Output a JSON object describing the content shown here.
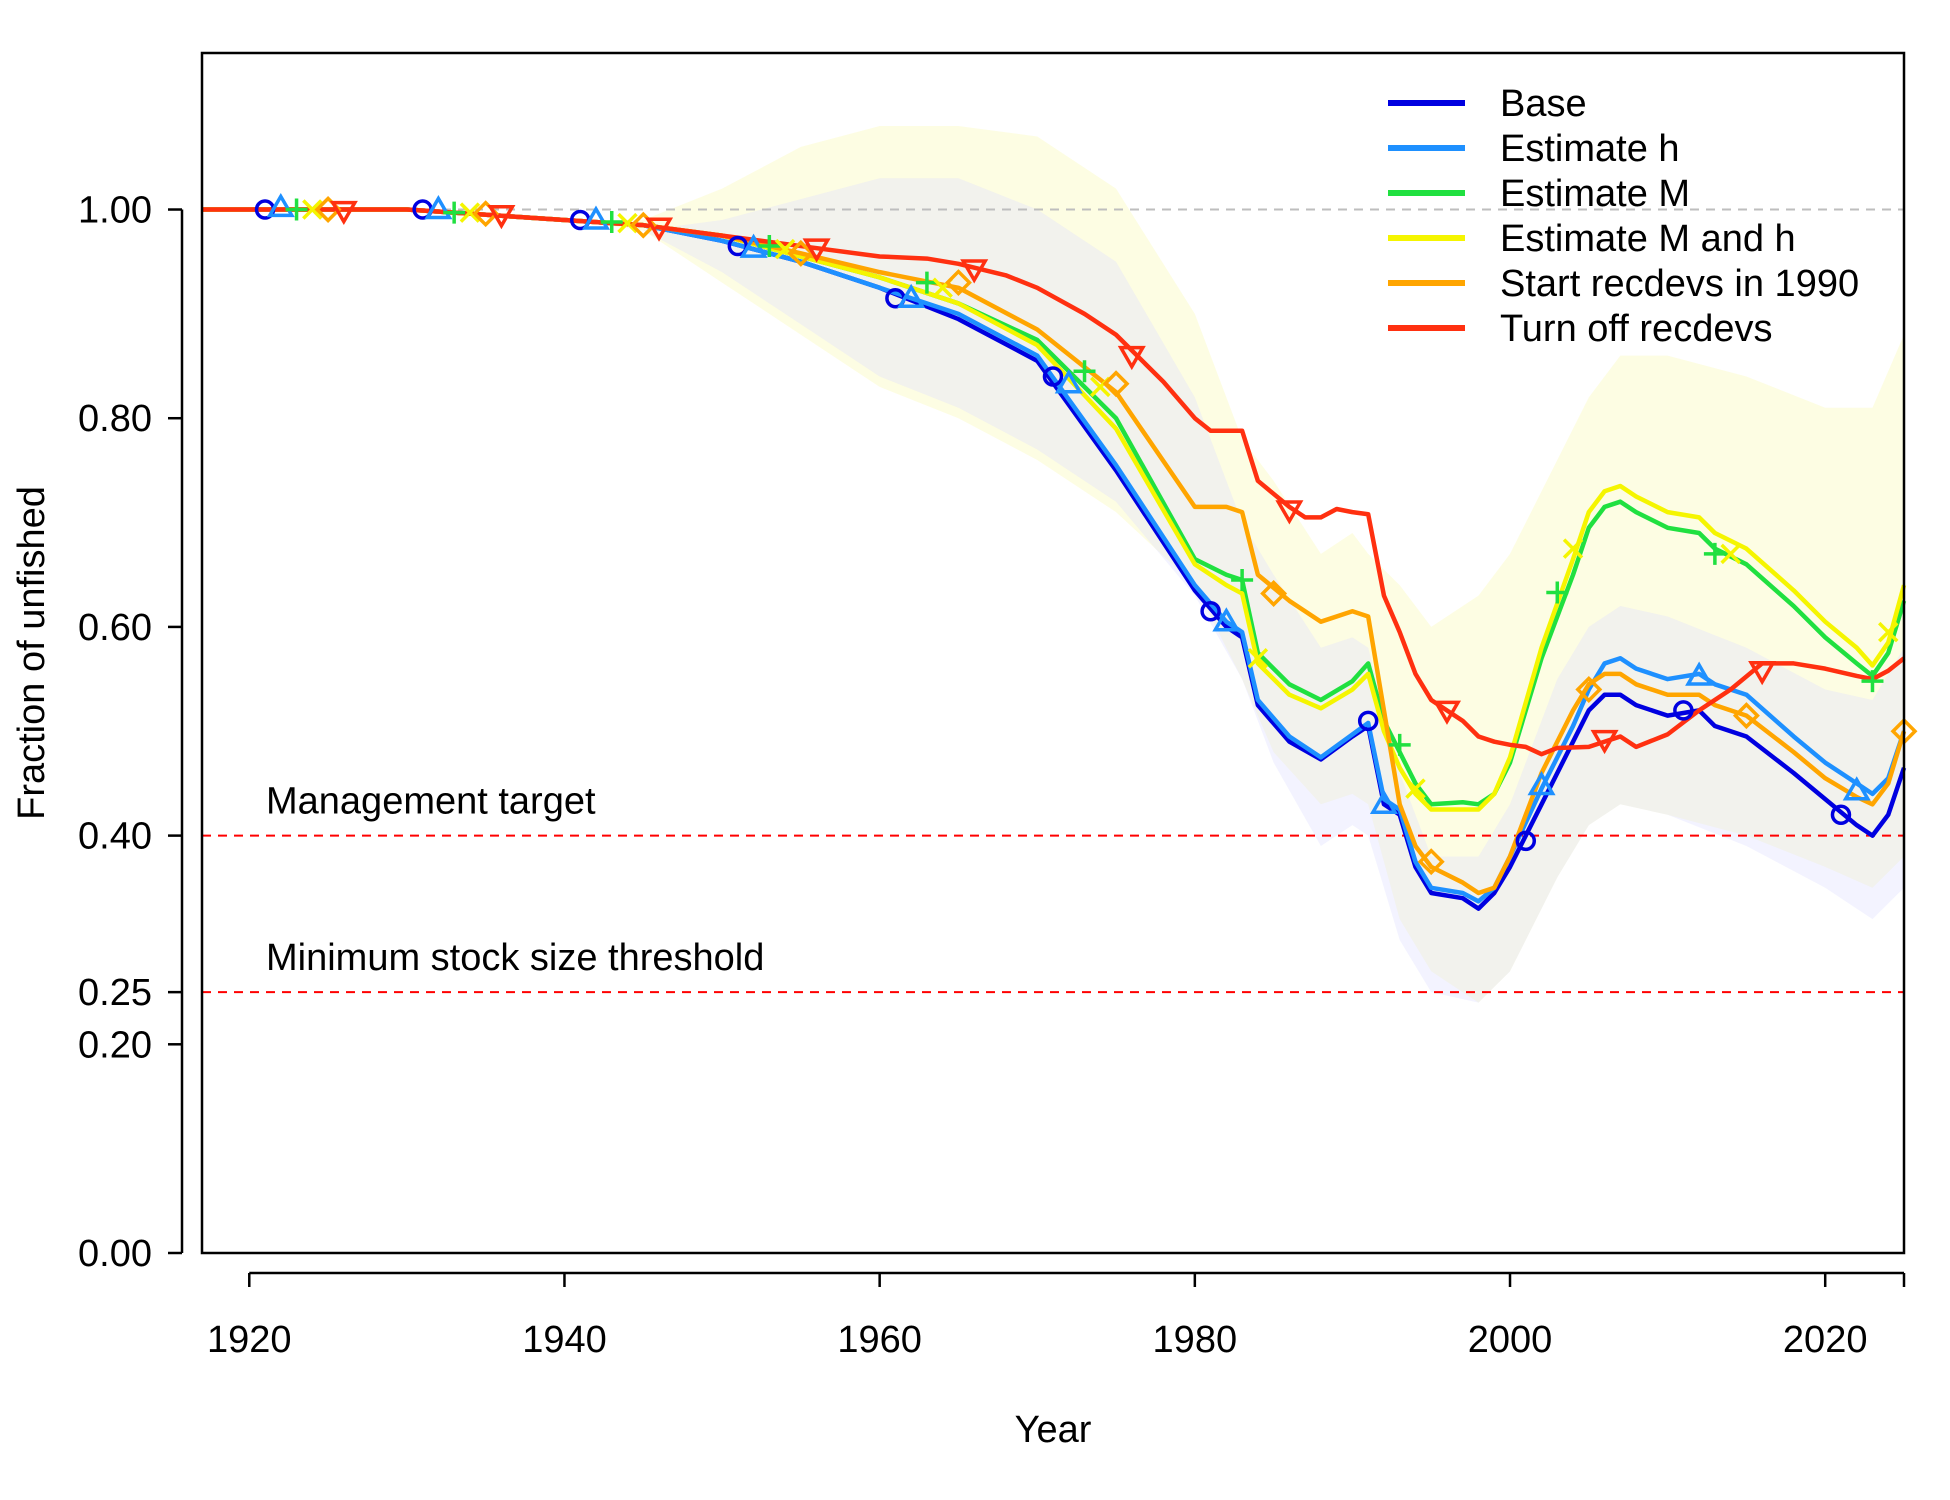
{
  "chart_data": {
    "type": "line",
    "xlabel": "Year",
    "ylabel": "Fraction of unfished",
    "xlim": [
      1917,
      2025
    ],
    "ylim": [
      0,
      1.15
    ],
    "x_ticks": [
      1920,
      1940,
      1960,
      1980,
      2000,
      2020
    ],
    "y_ticks": [
      0.0,
      0.2,
      0.25,
      0.4,
      0.6,
      0.8,
      1.0
    ],
    "y_tick_labels": [
      "0.00",
      "0.20",
      "0.25",
      "0.40",
      "0.60",
      "0.80",
      "1.00"
    ],
    "reference_lines": [
      {
        "y": 1.0,
        "label": "",
        "color": "#bebebe"
      },
      {
        "y": 0.4,
        "label": "Management target",
        "color": "#ff0000"
      },
      {
        "y": 0.25,
        "label": "Minimum stock size threshold",
        "color": "#ff0000"
      }
    ],
    "legend_position": "top-right",
    "bands": [
      {
        "color": "#f9f9b0",
        "opacity": 0.35,
        "x": [
          1920,
          1930,
          1940,
          1945,
          1950,
          1955,
          1960,
          1965,
          1970,
          1975,
          1980,
          1983,
          1985,
          1988,
          1990,
          1991,
          1993,
          1995,
          1998,
          2000,
          2003,
          2005,
          2007,
          2010,
          2015,
          2020,
          2023,
          2025
        ],
        "upper": [
          1.0,
          1.0,
          0.99,
          0.99,
          1.02,
          1.06,
          1.08,
          1.08,
          1.07,
          1.02,
          0.9,
          0.78,
          0.74,
          0.67,
          0.69,
          0.67,
          0.64,
          0.6,
          0.63,
          0.67,
          0.76,
          0.82,
          0.86,
          0.86,
          0.84,
          0.81,
          0.81,
          0.88
        ],
        "lower": [
          1.0,
          1.0,
          0.99,
          0.98,
          0.93,
          0.88,
          0.83,
          0.8,
          0.76,
          0.71,
          0.64,
          0.55,
          0.48,
          0.43,
          0.44,
          0.43,
          0.32,
          0.27,
          0.24,
          0.27,
          0.36,
          0.41,
          0.43,
          0.42,
          0.4,
          0.37,
          0.35,
          0.38
        ]
      },
      {
        "color": "#dcdcff",
        "opacity": 0.35,
        "x": [
          1920,
          1930,
          1940,
          1945,
          1950,
          1955,
          1960,
          1965,
          1970,
          1975,
          1980,
          1983,
          1985,
          1988,
          1990,
          1991,
          1993,
          1995,
          1998,
          2000,
          2003,
          2005,
          2007,
          2010,
          2015,
          2020,
          2023,
          2025
        ],
        "upper": [
          1.0,
          1.0,
          0.99,
          0.98,
          0.99,
          1.01,
          1.03,
          1.03,
          1.0,
          0.95,
          0.82,
          0.7,
          0.65,
          0.58,
          0.59,
          0.58,
          0.46,
          0.38,
          0.38,
          0.43,
          0.55,
          0.6,
          0.62,
          0.61,
          0.58,
          0.54,
          0.53,
          0.58
        ],
        "lower": [
          1.0,
          1.0,
          0.99,
          0.98,
          0.94,
          0.89,
          0.84,
          0.81,
          0.77,
          0.72,
          0.63,
          0.55,
          0.47,
          0.39,
          0.41,
          0.4,
          0.3,
          0.25,
          0.24,
          0.27,
          0.36,
          0.41,
          0.43,
          0.42,
          0.39,
          0.35,
          0.32,
          0.35
        ]
      }
    ],
    "series": [
      {
        "name": "Base",
        "color": "#0000e0",
        "marker": "circle",
        "x": [
          1917,
          1920,
          1930,
          1940,
          1945,
          1950,
          1955,
          1960,
          1965,
          1970,
          1975,
          1980,
          1982,
          1983,
          1984,
          1986,
          1988,
          1990,
          1991,
          1992,
          1993,
          1994,
          1995,
          1997,
          1998,
          1999,
          2000,
          2002,
          2004,
          2005,
          2006,
          2007,
          2008,
          2010,
          2012,
          2013,
          2015,
          2018,
          2020,
          2022,
          2023,
          2024,
          2025
        ],
        "y": [
          1.0,
          1.0,
          1.0,
          0.99,
          0.985,
          0.97,
          0.95,
          0.925,
          0.895,
          0.855,
          0.75,
          0.635,
          0.6,
          0.59,
          0.525,
          0.49,
          0.473,
          0.495,
          0.505,
          0.43,
          0.42,
          0.37,
          0.345,
          0.34,
          0.33,
          0.345,
          0.37,
          0.43,
          0.49,
          0.52,
          0.535,
          0.535,
          0.525,
          0.515,
          0.52,
          0.505,
          0.495,
          0.46,
          0.435,
          0.41,
          0.4,
          0.42,
          0.465
        ],
        "marker_x": [
          1921,
          1931,
          1941,
          1951,
          1961,
          1971,
          1981,
          1991,
          2001,
          2011,
          2021
        ],
        "marker_y": [
          1.0,
          1.0,
          0.99,
          0.965,
          0.915,
          0.84,
          0.615,
          0.51,
          0.395,
          0.52,
          0.42
        ]
      },
      {
        "name": "Estimate h",
        "color": "#1e90ff",
        "marker": "triangle-up",
        "x": [
          1917,
          1920,
          1930,
          1940,
          1945,
          1950,
          1955,
          1960,
          1965,
          1970,
          1975,
          1980,
          1982,
          1983,
          1984,
          1986,
          1988,
          1990,
          1991,
          1992,
          1993,
          1994,
          1995,
          1997,
          1998,
          1999,
          2000,
          2002,
          2004,
          2005,
          2006,
          2007,
          2008,
          2010,
          2012,
          2013,
          2015,
          2018,
          2020,
          2022,
          2023,
          2024,
          2025
        ],
        "y": [
          1.0,
          1.0,
          1.0,
          0.99,
          0.985,
          0.97,
          0.95,
          0.925,
          0.9,
          0.86,
          0.755,
          0.64,
          0.605,
          0.595,
          0.53,
          0.495,
          0.475,
          0.497,
          0.508,
          0.435,
          0.425,
          0.375,
          0.35,
          0.345,
          0.337,
          0.35,
          0.38,
          0.445,
          0.505,
          0.54,
          0.565,
          0.57,
          0.56,
          0.55,
          0.555,
          0.545,
          0.535,
          0.495,
          0.47,
          0.45,
          0.44,
          0.455,
          0.5
        ],
        "marker_x": [
          1922,
          1932,
          1942,
          1952,
          1962,
          1972,
          1982,
          1992,
          2002,
          2012,
          2022
        ],
        "marker_y": [
          1.002,
          1.0,
          0.99,
          0.963,
          0.915,
          0.833,
          0.605,
          0.43,
          0.448,
          0.553,
          0.443
        ]
      },
      {
        "name": "Estimate M",
        "color": "#20e040",
        "marker": "plus",
        "x": [
          1917,
          1920,
          1930,
          1940,
          1945,
          1950,
          1955,
          1960,
          1965,
          1970,
          1975,
          1980,
          1982,
          1983,
          1984,
          1986,
          1988,
          1990,
          1991,
          1992,
          1993,
          1994,
          1995,
          1997,
          1998,
          1999,
          2000,
          2002,
          2004,
          2005,
          2006,
          2007,
          2008,
          2010,
          2012,
          2013,
          2015,
          2018,
          2020,
          2022,
          2023,
          2024,
          2025
        ],
        "y": [
          1.0,
          1.0,
          1.0,
          0.99,
          0.985,
          0.975,
          0.955,
          0.935,
          0.91,
          0.875,
          0.8,
          0.665,
          0.65,
          0.645,
          0.575,
          0.545,
          0.53,
          0.548,
          0.565,
          0.51,
          0.48,
          0.45,
          0.43,
          0.432,
          0.43,
          0.44,
          0.47,
          0.57,
          0.65,
          0.695,
          0.715,
          0.72,
          0.71,
          0.695,
          0.69,
          0.675,
          0.66,
          0.62,
          0.59,
          0.565,
          0.553,
          0.575,
          0.625
        ],
        "marker_x": [
          1923,
          1933,
          1943,
          1953,
          1963,
          1973,
          1983,
          1993,
          2003,
          2013,
          2023
        ],
        "marker_y": [
          1.0,
          0.997,
          0.988,
          0.965,
          0.93,
          0.845,
          0.645,
          0.487,
          0.633,
          0.67,
          0.548
        ]
      },
      {
        "name": "Estimate M and h",
        "color": "#f5f500",
        "marker": "x",
        "x": [
          1917,
          1920,
          1930,
          1940,
          1945,
          1950,
          1955,
          1960,
          1965,
          1970,
          1975,
          1980,
          1982,
          1983,
          1984,
          1986,
          1988,
          1990,
          1991,
          1992,
          1993,
          1994,
          1995,
          1997,
          1998,
          1999,
          2000,
          2002,
          2004,
          2005,
          2006,
          2007,
          2008,
          2010,
          2012,
          2013,
          2015,
          2018,
          2020,
          2022,
          2023,
          2024,
          2025
        ],
        "y": [
          1.0,
          1.0,
          1.0,
          0.99,
          0.985,
          0.975,
          0.955,
          0.935,
          0.91,
          0.87,
          0.79,
          0.66,
          0.64,
          0.632,
          0.565,
          0.535,
          0.522,
          0.54,
          0.555,
          0.5,
          0.465,
          0.44,
          0.425,
          0.425,
          0.425,
          0.44,
          0.475,
          0.58,
          0.665,
          0.71,
          0.73,
          0.735,
          0.725,
          0.71,
          0.705,
          0.69,
          0.675,
          0.635,
          0.605,
          0.58,
          0.563,
          0.585,
          0.64
        ],
        "marker_x": [
          1924,
          1934,
          1944,
          1954,
          1964,
          1974,
          1984,
          1994,
          2004,
          2014,
          2024
        ],
        "marker_y": [
          1.0,
          0.997,
          0.987,
          0.962,
          0.925,
          0.83,
          0.57,
          0.445,
          0.675,
          0.67,
          0.595
        ]
      },
      {
        "name": "Start recdevs in 1990",
        "color": "#ffa500",
        "marker": "diamond",
        "x": [
          1917,
          1920,
          1930,
          1940,
          1945,
          1950,
          1955,
          1960,
          1965,
          1970,
          1975,
          1980,
          1982,
          1983,
          1984,
          1986,
          1988,
          1990,
          1991,
          1992,
          1993,
          1994,
          1995,
          1997,
          1998,
          1999,
          2000,
          2002,
          2004,
          2005,
          2006,
          2007,
          2008,
          2010,
          2012,
          2013,
          2015,
          2018,
          2020,
          2022,
          2023,
          2024,
          2025
        ],
        "y": [
          1.0,
          1.0,
          1.0,
          0.99,
          0.985,
          0.975,
          0.958,
          0.94,
          0.925,
          0.885,
          0.825,
          0.715,
          0.715,
          0.71,
          0.65,
          0.625,
          0.605,
          0.615,
          0.61,
          0.52,
          0.43,
          0.39,
          0.37,
          0.355,
          0.345,
          0.35,
          0.38,
          0.46,
          0.52,
          0.545,
          0.555,
          0.555,
          0.545,
          0.535,
          0.535,
          0.525,
          0.515,
          0.48,
          0.455,
          0.437,
          0.43,
          0.45,
          0.5
        ],
        "marker_x": [
          1925,
          1935,
          1945,
          1955,
          1965,
          1975,
          1985,
          1995,
          2005,
          2015,
          2025
        ],
        "marker_y": [
          1.0,
          0.996,
          0.985,
          0.958,
          0.93,
          0.833,
          0.632,
          0.375,
          0.54,
          0.515,
          0.5
        ]
      },
      {
        "name": "Turn off recdevs",
        "color": "#ff3010",
        "marker": "triangle-down",
        "x": [
          1917,
          1920,
          1930,
          1940,
          1945,
          1950,
          1955,
          1960,
          1963,
          1965,
          1968,
          1970,
          1973,
          1975,
          1978,
          1980,
          1981,
          1982,
          1983,
          1984,
          1986,
          1987,
          1988,
          1989,
          1990,
          1991,
          1992,
          1993,
          1994,
          1995,
          1997,
          1998,
          1999,
          2000,
          2001,
          2002,
          2003,
          2005,
          2007,
          2008,
          2010,
          2012,
          2014,
          2016,
          2018,
          2020,
          2022,
          2023,
          2024,
          2025
        ],
        "y": [
          1.0,
          1.0,
          1.0,
          0.99,
          0.985,
          0.975,
          0.965,
          0.955,
          0.953,
          0.948,
          0.937,
          0.925,
          0.9,
          0.88,
          0.835,
          0.8,
          0.788,
          0.788,
          0.788,
          0.74,
          0.715,
          0.705,
          0.705,
          0.713,
          0.71,
          0.708,
          0.63,
          0.595,
          0.555,
          0.53,
          0.51,
          0.495,
          0.49,
          0.487,
          0.485,
          0.478,
          0.484,
          0.485,
          0.495,
          0.485,
          0.497,
          0.52,
          0.54,
          0.565,
          0.565,
          0.56,
          0.553,
          0.55,
          0.558,
          0.57
        ],
        "marker_x": [
          1926,
          1936,
          1946,
          1956,
          1966,
          1976,
          1986,
          1996,
          2006,
          2016
        ],
        "marker_y": [
          0.999,
          0.995,
          0.983,
          0.963,
          0.943,
          0.86,
          0.712,
          0.52,
          0.492,
          0.558
        ]
      }
    ]
  }
}
